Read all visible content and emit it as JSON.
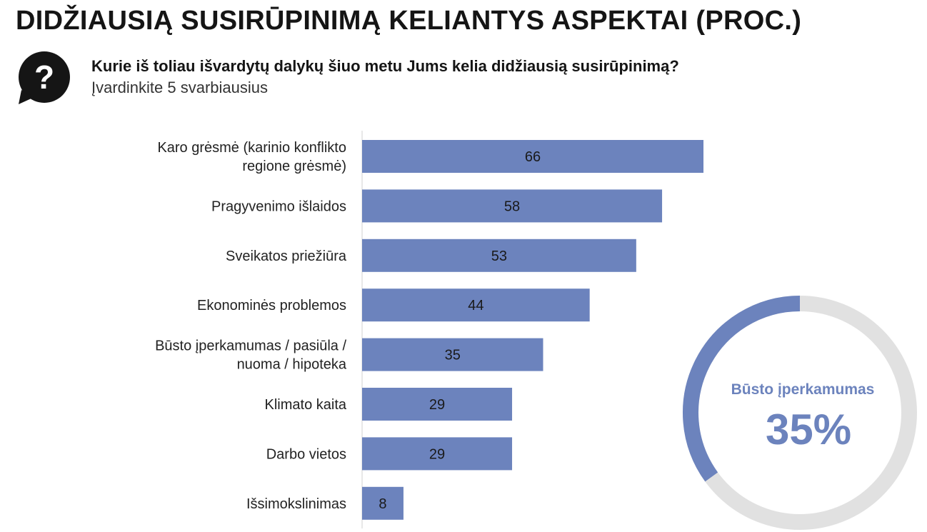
{
  "header": {
    "title": "DIDŽIAUSIĄ SUSIRŪPINIMĄ KELIANTYS ASPEKTAI (PROC.)",
    "question": "Kurie iš toliau išvardytų dalykų šiuo metu Jums kelia didžiausią susirūpinimą?",
    "instruction": "Įvardinkite 5 svarbiausius",
    "icon": "question-bubble-icon"
  },
  "colors": {
    "bar": "#6c83bd",
    "accent": "#6c83bd",
    "track": "#e1e1e1",
    "text": "#1a1a1a"
  },
  "chart_data": {
    "type": "bar",
    "orientation": "horizontal",
    "categories": [
      [
        "Karo grėsmė (karinio konflikto",
        "regione grėsmė)"
      ],
      [
        "Pragyvenimo išlaidos"
      ],
      [
        "Sveikatos priežiūra"
      ],
      [
        "Ekonominės problemos"
      ],
      [
        "Būsto įperkamumas / pasiūla /",
        "nuoma / hipoteka"
      ],
      [
        "Klimato kaita"
      ],
      [
        "Darbo vietos"
      ],
      [
        "Išsimokslinimas"
      ]
    ],
    "values": [
      66,
      58,
      53,
      44,
      35,
      29,
      29,
      8
    ],
    "xlim": [
      0,
      70
    ],
    "grid": false,
    "legend": "none",
    "data_labels": true
  },
  "highlight": {
    "label": "Būsto įperkamumas",
    "value": 35,
    "value_text": "35%"
  }
}
